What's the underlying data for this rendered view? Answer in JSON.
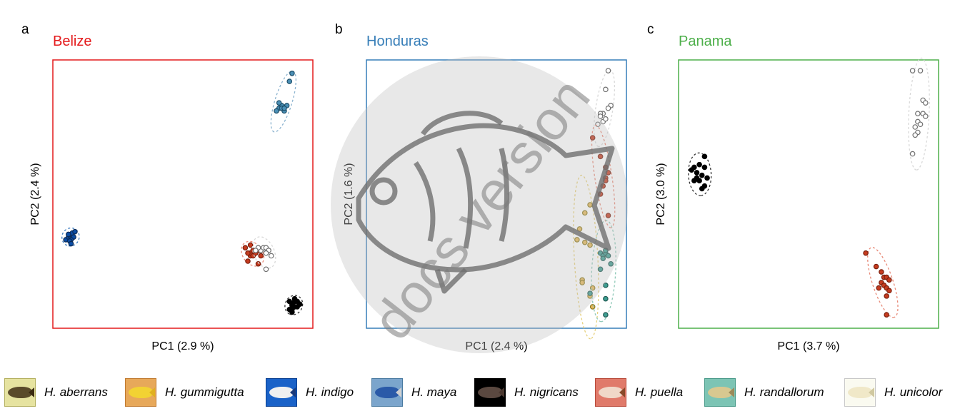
{
  "chart_data": [
    {
      "type": "scatter",
      "panel_letter": "a",
      "title": "Belize",
      "title_color": "#e41a1c",
      "xlabel": "PC1 (2.9 %)",
      "ylabel": "PC2 (2.4 %)",
      "series": [
        {
          "name": "H. indigo",
          "points": [
            [
              0.05,
              0.33
            ],
            [
              0.06,
              0.34
            ],
            [
              0.065,
              0.345
            ],
            [
              0.07,
              0.35
            ],
            [
              0.075,
              0.355
            ],
            [
              0.08,
              0.34
            ],
            [
              0.07,
              0.33
            ],
            [
              0.06,
              0.35
            ],
            [
              0.065,
              0.325
            ],
            [
              0.07,
              0.315
            ],
            [
              0.085,
              0.36
            ]
          ]
        },
        {
          "name": "H. maya",
          "points": [
            [
              0.92,
              0.95
            ],
            [
              0.91,
              0.92
            ],
            [
              0.88,
              0.83
            ],
            [
              0.87,
              0.82
            ],
            [
              0.89,
              0.81
            ],
            [
              0.9,
              0.83
            ],
            [
              0.88,
              0.82
            ],
            [
              0.86,
              0.81
            ],
            [
              0.89,
              0.82
            ],
            [
              0.87,
              0.84
            ]
          ]
        },
        {
          "name": "H. puella",
          "points": [
            [
              0.76,
              0.27
            ],
            [
              0.76,
              0.28
            ],
            [
              0.77,
              0.29
            ],
            [
              0.74,
              0.3
            ],
            [
              0.75,
              0.25
            ],
            [
              0.77,
              0.27
            ],
            [
              0.78,
              0.28
            ],
            [
              0.79,
              0.29
            ],
            [
              0.79,
              0.24
            ],
            [
              0.76,
              0.31
            ],
            [
              0.8,
              0.27
            ],
            [
              0.75,
              0.28
            ]
          ]
        },
        {
          "name": "H. unicolor",
          "points": [
            [
              0.8,
              0.29
            ],
            [
              0.81,
              0.3
            ],
            [
              0.82,
              0.3
            ],
            [
              0.83,
              0.29
            ],
            [
              0.84,
              0.27
            ],
            [
              0.82,
              0.28
            ],
            [
              0.79,
              0.3
            ],
            [
              0.82,
              0.22
            ],
            [
              0.78,
              0.29
            ]
          ]
        },
        {
          "name": "H. nigricans",
          "points": [
            [
              0.91,
              0.1
            ],
            [
              0.92,
              0.09
            ],
            [
              0.93,
              0.08
            ],
            [
              0.92,
              0.07
            ],
            [
              0.94,
              0.08
            ],
            [
              0.95,
              0.09
            ],
            [
              0.93,
              0.1
            ],
            [
              0.91,
              0.07
            ],
            [
              0.92,
              0.06
            ],
            [
              0.94,
              0.1
            ],
            [
              0.93,
              0.11
            ],
            [
              0.92,
              0.085
            ]
          ]
        }
      ]
    },
    {
      "type": "scatter",
      "panel_letter": "b",
      "title": "Honduras",
      "title_color": "#377eb8",
      "xlabel": "PC1 (2.4 %)",
      "ylabel": "PC2 (1.6 %)",
      "series": [
        {
          "name": "H. unicolor",
          "points": [
            [
              0.93,
              0.96
            ],
            [
              0.92,
              0.89
            ],
            [
              0.94,
              0.83
            ],
            [
              0.93,
              0.82
            ],
            [
              0.91,
              0.8
            ],
            [
              0.9,
              0.8
            ],
            [
              0.9,
              0.79
            ],
            [
              0.91,
              0.77
            ],
            [
              0.92,
              0.78
            ],
            [
              0.89,
              0.76
            ]
          ]
        },
        {
          "name": "H. puella",
          "points": [
            [
              0.87,
              0.71
            ],
            [
              0.9,
              0.64
            ],
            [
              0.92,
              0.6
            ],
            [
              0.93,
              0.58
            ],
            [
              0.92,
              0.56
            ],
            [
              0.92,
              0.55
            ],
            [
              0.91,
              0.53
            ],
            [
              0.9,
              0.5
            ],
            [
              0.93,
              0.42
            ]
          ]
        },
        {
          "name": "H. gummigutta",
          "points": [
            [
              0.86,
              0.46
            ],
            [
              0.84,
              0.43
            ],
            [
              0.82,
              0.37
            ],
            [
              0.81,
              0.33
            ],
            [
              0.84,
              0.32
            ],
            [
              0.86,
              0.31
            ],
            [
              0.83,
              0.18
            ],
            [
              0.83,
              0.17
            ],
            [
              0.86,
              0.12
            ],
            [
              0.87,
              0.15
            ],
            [
              0.87,
              0.08
            ]
          ]
        },
        {
          "name": "H. randallorum",
          "points": [
            [
              0.9,
              0.28
            ],
            [
              0.91,
              0.27
            ],
            [
              0.92,
              0.28
            ],
            [
              0.93,
              0.27
            ],
            [
              0.92,
              0.29
            ],
            [
              0.91,
              0.26
            ],
            [
              0.94,
              0.24
            ],
            [
              0.9,
              0.22
            ],
            [
              0.92,
              0.16
            ],
            [
              0.86,
              0.13
            ],
            [
              0.92,
              0.11
            ],
            [
              0.92,
              0.05
            ]
          ]
        }
      ]
    },
    {
      "type": "scatter",
      "panel_letter": "c",
      "title": "Panama",
      "title_color": "#4daf4a",
      "xlabel": "PC1 (3.7 %)",
      "ylabel": "PC2 (3.0 %)",
      "series": [
        {
          "name": "H. unicolor",
          "points": [
            [
              0.9,
              0.96
            ],
            [
              0.93,
              0.96
            ],
            [
              0.94,
              0.85
            ],
            [
              0.95,
              0.84
            ],
            [
              0.92,
              0.8
            ],
            [
              0.94,
              0.8
            ],
            [
              0.95,
              0.79
            ],
            [
              0.92,
              0.77
            ],
            [
              0.93,
              0.76
            ],
            [
              0.91,
              0.75
            ],
            [
              0.92,
              0.73
            ],
            [
              0.91,
              0.72
            ],
            [
              0.9,
              0.65
            ]
          ]
        },
        {
          "name": "H. nigricans",
          "points": [
            [
              0.05,
              0.59
            ],
            [
              0.06,
              0.6
            ],
            [
              0.07,
              0.58
            ],
            [
              0.08,
              0.61
            ],
            [
              0.09,
              0.57
            ],
            [
              0.1,
              0.6
            ],
            [
              0.11,
              0.56
            ],
            [
              0.1,
              0.53
            ],
            [
              0.09,
              0.52
            ],
            [
              0.06,
              0.55
            ],
            [
              0.07,
              0.56
            ],
            [
              0.08,
              0.55
            ],
            [
              0.1,
              0.64
            ]
          ]
        },
        {
          "name": "H. puella",
          "points": [
            [
              0.72,
              0.28
            ],
            [
              0.76,
              0.23
            ],
            [
              0.78,
              0.21
            ],
            [
              0.79,
              0.19
            ],
            [
              0.8,
              0.19
            ],
            [
              0.78,
              0.17
            ],
            [
              0.79,
              0.16
            ],
            [
              0.77,
              0.15
            ],
            [
              0.8,
              0.15
            ],
            [
              0.81,
              0.18
            ],
            [
              0.8,
              0.12
            ],
            [
              0.81,
              0.14
            ],
            [
              0.8,
              0.05
            ]
          ]
        }
      ]
    }
  ],
  "species_colors": {
    "H. aberrans": "#e6e6a0",
    "H. gummigutta": "#e7b85a",
    "H. indigo": "#0a4da6",
    "H. maya": "#4a8fb5",
    "H. nigricans": "#000000",
    "H. puella": "#c53b1f",
    "H. randallorum": "#3d9d91",
    "H. unicolor": "#ffffff"
  },
  "point_edge_colors": {
    "H. aberrans": "#8b8b3a",
    "H. gummigutta": "#8b7a20",
    "H. indigo": "#0a2a55",
    "H. maya": "#1d4e69",
    "H. nigricans": "#000000",
    "H. puella": "#7a1f0d",
    "H. randallorum": "#1f5a52",
    "H. unicolor": "#707070"
  },
  "ellipse_colors": {
    "H. aberrans": "#c9c98a",
    "H. gummigutta": "#e6d07a",
    "H. indigo": "#3a7bbf",
    "H. maya": "#8bb3cf",
    "H. nigricans": "#333333",
    "H. puella": "#e88a78",
    "H. randallorum": "#8fc9b8",
    "H. unicolor": "#d9d9d9"
  },
  "legend": [
    {
      "label": "H. aberrans",
      "bg": "#e6e3a0",
      "border": "#b4b060",
      "fish": "#5a4a2a",
      "tail": "#3a2a10"
    },
    {
      "label": "H. gummigutta",
      "bg": "#e7a85a",
      "border": "#c07a30",
      "fish": "#f2d233",
      "tail": "#e0b020"
    },
    {
      "label": "H. indigo",
      "bg": "#1a62c8",
      "border": "#0a3f8f",
      "fish": "#f0f0f0",
      "tail": "#1a3a7a"
    },
    {
      "label": "H. maya",
      "bg": "#7ba5cc",
      "border": "#4a7aa0",
      "fish": "#2a5aa8",
      "tail": "#d0d0d0"
    },
    {
      "label": "H. nigricans",
      "bg": "#000000",
      "border": "#000000",
      "fish": "#5a4840",
      "tail": "#4a3830"
    },
    {
      "label": "H. puella",
      "bg": "#e07a6a",
      "border": "#b84a3a",
      "fish": "#f0d8c8",
      "tail": "#8a4a2a"
    },
    {
      "label": "H. randallorum",
      "bg": "#7cc4b4",
      "border": "#4a9a8a",
      "fish": "#d8c890",
      "tail": "#9a8a5a"
    },
    {
      "label": "H. unicolor",
      "bg": "#fafaf0",
      "border": "#c8c8c8",
      "fish": "#f0e8c8",
      "tail": "#d0c8a0"
    }
  ],
  "watermark_text": "docs version"
}
